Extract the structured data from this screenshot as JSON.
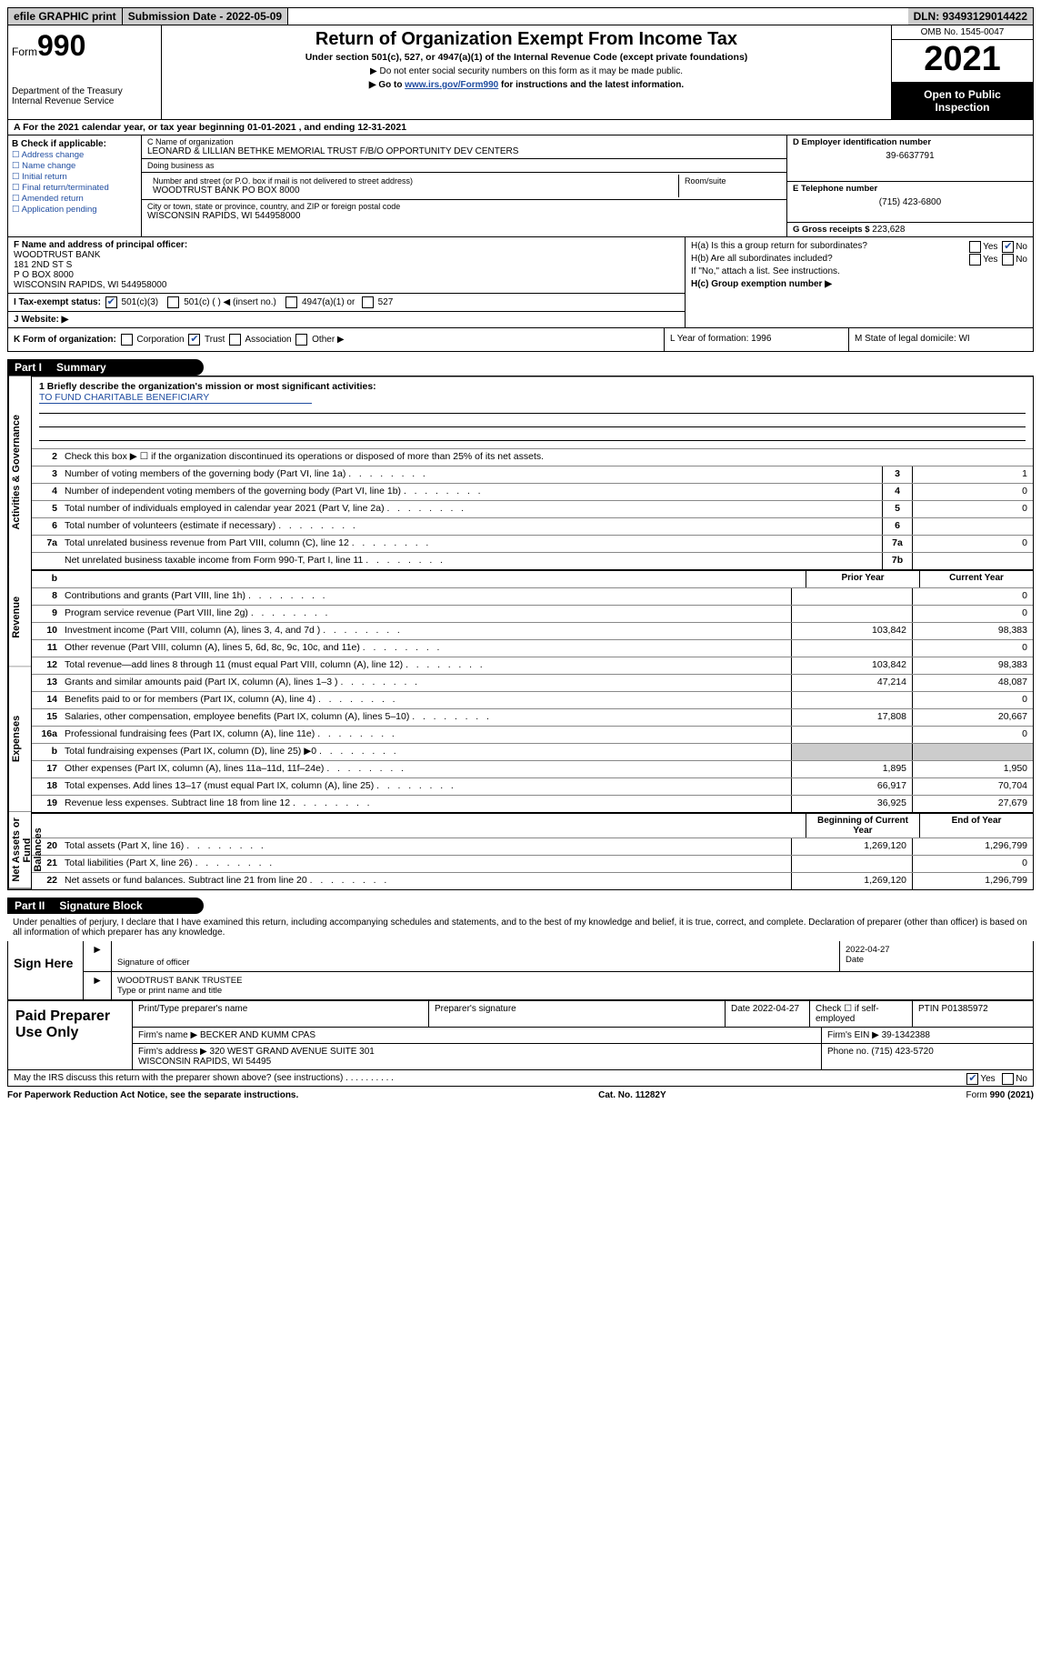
{
  "colors": {
    "link": "#204da0",
    "black": "#000",
    "gray": "#ccc"
  },
  "topbar": {
    "efile": "efile GRAPHIC print",
    "submission": "Submission Date - 2022-05-09",
    "dln": "DLN: 93493129014422"
  },
  "header": {
    "form_prefix": "Form",
    "form_no": "990",
    "dept": "Department of the Treasury\nInternal Revenue Service",
    "title": "Return of Organization Exempt From Income Tax",
    "sub1": "Under section 501(c), 527, or 4947(a)(1) of the Internal Revenue Code (except private foundations)",
    "sub2": "▶ Do not enter social security numbers on this form as it may be made public.",
    "sub3_prefix": "▶ Go to ",
    "sub3_link": "www.irs.gov/Form990",
    "sub3_suffix": " for instructions and the latest information.",
    "omb": "OMB No. 1545-0047",
    "year": "2021",
    "inspect": "Open to Public Inspection"
  },
  "rowA": "A For the 2021 calendar year, or tax year beginning 01-01-2021    , and ending 12-31-2021",
  "boxB": {
    "hdr": "B Check if applicable:",
    "items": [
      "Address change",
      "Name change",
      "Initial return",
      "Final return/terminated",
      "Amended return",
      "Application pending"
    ]
  },
  "boxC": {
    "name_lbl": "C Name of organization",
    "name": "LEONARD & LILLIAN BETHKE MEMORIAL TRUST F/B/O OPPORTUNITY DEV CENTERS",
    "dba_lbl": "Doing business as",
    "dba": "",
    "street_lbl": "Number and street (or P.O. box if mail is not delivered to street address)",
    "street": "WOODTRUST BANK PO BOX 8000",
    "room_lbl": "Room/suite",
    "room": "",
    "city_lbl": "City or town, state or province, country, and ZIP or foreign postal code",
    "city": "WISCONSIN RAPIDS, WI  544958000"
  },
  "boxD": {
    "lbl": "D Employer identification number",
    "val": "39-6637791"
  },
  "boxE": {
    "lbl": "E Telephone number",
    "val": "(715) 423-6800"
  },
  "boxG": {
    "lbl": "G Gross receipts $",
    "val": "223,628"
  },
  "boxF": {
    "lbl": "F  Name and address of principal officer:",
    "val": "WOODTRUST BANK\n181 2ND ST S\nP O BOX 8000\nWISCONSIN RAPIDS, WI  544958000"
  },
  "boxI": {
    "lbl": "I  Tax-exempt status:",
    "o1": "501(c)(3)",
    "o2": "501(c) (  ) ◀ (insert no.)",
    "o3": "4947(a)(1) or",
    "o4": "527"
  },
  "boxJ": {
    "lbl": "J  Website: ▶"
  },
  "boxH": {
    "a": "H(a)  Is this a group return for subordinates?",
    "yes": "Yes",
    "no": "No",
    "b": "H(b)  Are all subordinates included?",
    "note": "If \"No,\" attach a list. See instructions.",
    "c": "H(c)  Group exemption number ▶"
  },
  "rowK": {
    "k": "K Form of organization:",
    "o1": "Corporation",
    "o2": "Trust",
    "o3": "Association",
    "o4": "Other ▶",
    "l": "L Year of formation: 1996",
    "m": "M State of legal domicile: WI"
  },
  "part1": {
    "num": "Part I",
    "title": "Summary"
  },
  "summary": {
    "mission_lbl": "1   Briefly describe the organization's mission or most significant activities:",
    "mission": "TO FUND CHARITABLE BENEFICIARY",
    "line2": "Check this box ▶ ☐  if the organization discontinued its operations or disposed of more than 25% of its net assets.",
    "sections": {
      "gov": "Activities & Governance",
      "rev": "Revenue",
      "exp": "Expenses",
      "net": "Net Assets or Fund Balances"
    },
    "prior": "Prior Year",
    "current": "Current Year",
    "begin": "Beginning of Current Year",
    "end": "End of Year",
    "lines": [
      {
        "n": "3",
        "t": "Number of voting members of the governing body (Part VI, line 1a)",
        "bn": "3",
        "v": "1"
      },
      {
        "n": "4",
        "t": "Number of independent voting members of the governing body (Part VI, line 1b)",
        "bn": "4",
        "v": "0"
      },
      {
        "n": "5",
        "t": "Total number of individuals employed in calendar year 2021 (Part V, line 2a)",
        "bn": "5",
        "v": "0"
      },
      {
        "n": "6",
        "t": "Total number of volunteers (estimate if necessary)",
        "bn": "6",
        "v": ""
      },
      {
        "n": "7a",
        "t": "Total unrelated business revenue from Part VIII, column (C), line 12",
        "bn": "7a",
        "v": "0"
      },
      {
        "n": "",
        "t": "Net unrelated business taxable income from Form 990-T, Part I, line 11",
        "bn": "7b",
        "v": ""
      }
    ],
    "rev_lines": [
      {
        "n": "8",
        "t": "Contributions and grants (Part VIII, line 1h)",
        "p": "",
        "c": "0"
      },
      {
        "n": "9",
        "t": "Program service revenue (Part VIII, line 2g)",
        "p": "",
        "c": "0"
      },
      {
        "n": "10",
        "t": "Investment income (Part VIII, column (A), lines 3, 4, and 7d )",
        "p": "103,842",
        "c": "98,383"
      },
      {
        "n": "11",
        "t": "Other revenue (Part VIII, column (A), lines 5, 6d, 8c, 9c, 10c, and 11e)",
        "p": "",
        "c": "0"
      },
      {
        "n": "12",
        "t": "Total revenue—add lines 8 through 11 (must equal Part VIII, column (A), line 12)",
        "p": "103,842",
        "c": "98,383"
      }
    ],
    "exp_lines": [
      {
        "n": "13",
        "t": "Grants and similar amounts paid (Part IX, column (A), lines 1–3 )",
        "p": "47,214",
        "c": "48,087"
      },
      {
        "n": "14",
        "t": "Benefits paid to or for members (Part IX, column (A), line 4)",
        "p": "",
        "c": "0"
      },
      {
        "n": "15",
        "t": "Salaries, other compensation, employee benefits (Part IX, column (A), lines 5–10)",
        "p": "17,808",
        "c": "20,667"
      },
      {
        "n": "16a",
        "t": "Professional fundraising fees (Part IX, column (A), line 11e)",
        "p": "",
        "c": "0"
      },
      {
        "n": "b",
        "t": "Total fundraising expenses (Part IX, column (D), line 25) ▶0",
        "p": "gray",
        "c": "gray"
      },
      {
        "n": "17",
        "t": "Other expenses (Part IX, column (A), lines 11a–11d, 11f–24e)",
        "p": "1,895",
        "c": "1,950"
      },
      {
        "n": "18",
        "t": "Total expenses. Add lines 13–17 (must equal Part IX, column (A), line 25)",
        "p": "66,917",
        "c": "70,704"
      },
      {
        "n": "19",
        "t": "Revenue less expenses. Subtract line 18 from line 12",
        "p": "36,925",
        "c": "27,679"
      }
    ],
    "net_lines": [
      {
        "n": "20",
        "t": "Total assets (Part X, line 16)",
        "p": "1,269,120",
        "c": "1,296,799"
      },
      {
        "n": "21",
        "t": "Total liabilities (Part X, line 26)",
        "p": "",
        "c": "0"
      },
      {
        "n": "22",
        "t": "Net assets or fund balances. Subtract line 21 from line 20",
        "p": "1,269,120",
        "c": "1,296,799"
      }
    ]
  },
  "part2": {
    "num": "Part II",
    "title": "Signature Block"
  },
  "sig": {
    "declare": "Under penalties of perjury, I declare that I have examined this return, including accompanying schedules and statements, and to the best of my knowledge and belief, it is true, correct, and complete. Declaration of preparer (other than officer) is based on all information of which preparer has any knowledge.",
    "sign_here": "Sign Here",
    "sig_officer": "Signature of officer",
    "date": "2022-04-27",
    "type_name": "WOODTRUST BANK TRUSTEE",
    "type_lbl": "Type or print name and title",
    "date_lbl": "Date"
  },
  "paid": {
    "title": "Paid Preparer Use Only",
    "r1": {
      "a": "Print/Type preparer's name",
      "b": "Preparer's signature",
      "c": "Date 2022-04-27",
      "d": "Check ☐ if self-employed",
      "e": "PTIN P01385972"
    },
    "r2": {
      "a": "Firm's name      ▶ BECKER AND KUMM CPAS",
      "b": "Firm's EIN ▶ 39-1342388"
    },
    "r3": {
      "a": "Firm's address ▶ 320 WEST GRAND AVENUE SUITE 301\n                         WISCONSIN RAPIDS, WI  54495",
      "b": "Phone no. (715) 423-5720"
    }
  },
  "discuss": "May the IRS discuss this return with the preparer shown above? (see instructions)   .   .   .   .   .   .   .   .   .   .",
  "discuss_yes": "Yes",
  "discuss_no": "No",
  "footer": {
    "a": "For Paperwork Reduction Act Notice, see the separate instructions.",
    "b": "Cat. No. 11282Y",
    "c": "Form 990 (2021)"
  }
}
